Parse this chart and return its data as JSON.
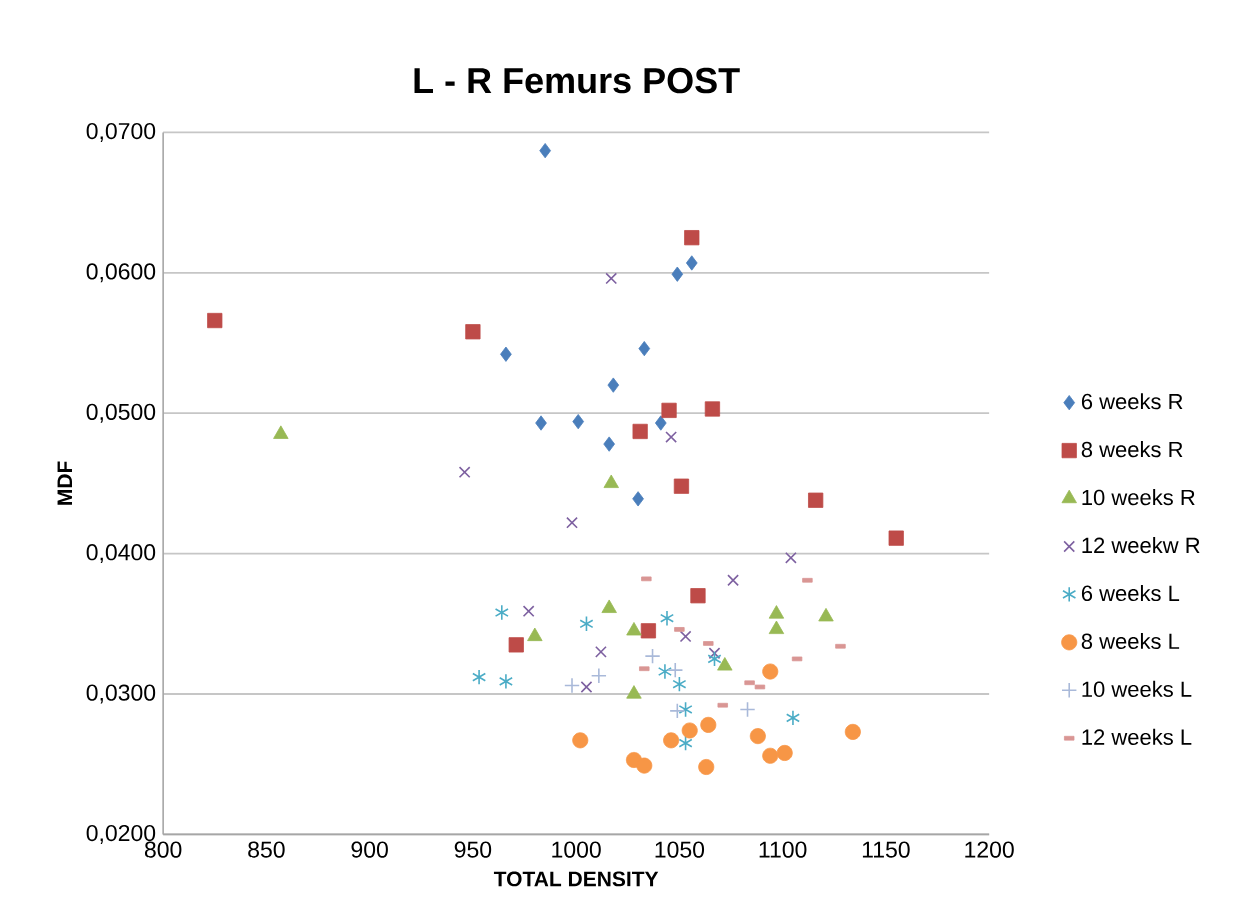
{
  "chart_data": {
    "type": "scatter",
    "title": "L - R Femurs  POST",
    "xlabel": "TOTAL DENSITY",
    "ylabel": "MDF",
    "xlim": [
      800,
      1200
    ],
    "xticks": [
      800,
      850,
      900,
      950,
      1000,
      1050,
      1100,
      1150,
      1200
    ],
    "ylim": [
      0.02,
      0.07
    ],
    "yticks": [
      {
        "value": 0.02,
        "label": "0,0200"
      },
      {
        "value": 0.03,
        "label": "0,0300"
      },
      {
        "value": 0.04,
        "label": "0,0400"
      },
      {
        "value": 0.05,
        "label": "0,0500"
      },
      {
        "value": 0.06,
        "label": "0,0600"
      },
      {
        "value": 0.07,
        "label": "0,0700"
      }
    ],
    "grid": "y",
    "legend": "right",
    "series": [
      {
        "name": "6 weeks R",
        "color": "#4a7ebb",
        "marker": "diamond",
        "x": [
          985,
          966,
          1018,
          983,
          1001,
          1016,
          1056,
          1049,
          1033,
          1041,
          1030
        ],
        "values": [
          0.0687,
          0.0542,
          0.052,
          0.0493,
          0.0494,
          0.0478,
          0.0607,
          0.0599,
          0.0546,
          0.0493,
          0.0439
        ]
      },
      {
        "name": "8 weeks R",
        "color": "#be4b48",
        "marker": "square",
        "x": [
          825,
          950,
          1056,
          1045,
          1066,
          1031,
          1051,
          1116,
          1155,
          1059,
          1035,
          971
        ],
        "values": [
          0.0566,
          0.0558,
          0.0625,
          0.0502,
          0.0503,
          0.0487,
          0.0448,
          0.0438,
          0.0411,
          0.037,
          0.0345,
          0.0335
        ]
      },
      {
        "name": "10 weeks R",
        "color": "#98b954",
        "marker": "triangle",
        "x": [
          857,
          1017,
          980,
          1016,
          1028,
          1097,
          1097,
          1121,
          1072,
          1028
        ],
        "values": [
          0.0485,
          0.045,
          0.0341,
          0.0361,
          0.0345,
          0.0357,
          0.0346,
          0.0355,
          0.032,
          0.03
        ]
      },
      {
        "name": "12 weekw R",
        "color": "#7d60a0",
        "marker": "cross",
        "x": [
          1017,
          1046,
          946,
          998,
          977,
          1012,
          1005,
          1076,
          1104,
          1053,
          1067
        ],
        "values": [
          0.0596,
          0.0483,
          0.0458,
          0.0422,
          0.0359,
          0.033,
          0.0305,
          0.0381,
          0.0397,
          0.0341,
          0.0329
        ]
      },
      {
        "name": "6 weeks L",
        "color": "#4bacc6",
        "marker": "cross",
        "x": [
          964,
          953,
          966,
          1005,
          1044,
          1067,
          1043,
          1050,
          1105,
          1053,
          1053
        ],
        "values": [
          0.0358,
          0.0312,
          0.0309,
          0.035,
          0.0354,
          0.0325,
          0.0316,
          0.0307,
          0.0283,
          0.0289,
          0.0265
        ]
      },
      {
        "name": "8 weeks L",
        "color": "#f79646",
        "marker": "circle",
        "x": [
          1002,
          1028,
          1033,
          1046,
          1055,
          1064,
          1063,
          1088,
          1094,
          1101,
          1094,
          1134
        ],
        "values": [
          0.0267,
          0.0253,
          0.0249,
          0.0267,
          0.0274,
          0.0278,
          0.0248,
          0.027,
          0.0256,
          0.0258,
          0.0316,
          0.0273
        ]
      },
      {
        "name": "10 weeks L",
        "color": "#a9b9d9",
        "marker": "plus",
        "x": [
          998,
          1011,
          1037,
          1048,
          1049,
          1083
        ],
        "values": [
          0.0306,
          0.0313,
          0.0327,
          0.0317,
          0.0288,
          0.0289
        ]
      },
      {
        "name": "12 weeks L",
        "color": "#d99694",
        "marker": "square",
        "x": [
          1034,
          1112,
          1050,
          1064,
          1128,
          1107,
          1033,
          1084,
          1089,
          1071
        ],
        "values": [
          0.0382,
          0.0381,
          0.0346,
          0.0336,
          0.0334,
          0.0325,
          0.0318,
          0.0308,
          0.0305,
          0.0292
        ]
      }
    ]
  }
}
